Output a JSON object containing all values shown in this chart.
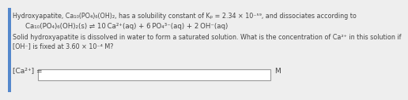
{
  "line1": "Hydroxyapatite, Ca₁₀(PO₄)₆(OH)₂, has a solubility constant of Kₚ = 2.34 × 10⁻⁵⁹, and dissociates according to",
  "line2": "Ca₁₀(PO₄)₆(OH)₂(s) ⇌ 10 Ca²⁺(aq) + 6 PO₄³⁻(aq) + 2 OH⁻(aq)",
  "line3": "Solid hydroxyapatite is dissolved in water to form a saturated solution. What is the concentration of Ca²⁺ in this solution if",
  "line4": "[OH⁻] is fixed at 3.60 × 10⁻⁴ M?",
  "label": "[Ca²⁺] =",
  "unit": "M",
  "bg_color": "#eeeeee",
  "text_color": "#444444",
  "box_color": "#ffffff",
  "border_color": "#999999",
  "left_bar_color": "#5588cc",
  "font_size_main": 5.8,
  "font_size_eq": 6.2,
  "font_size_label": 6.5
}
